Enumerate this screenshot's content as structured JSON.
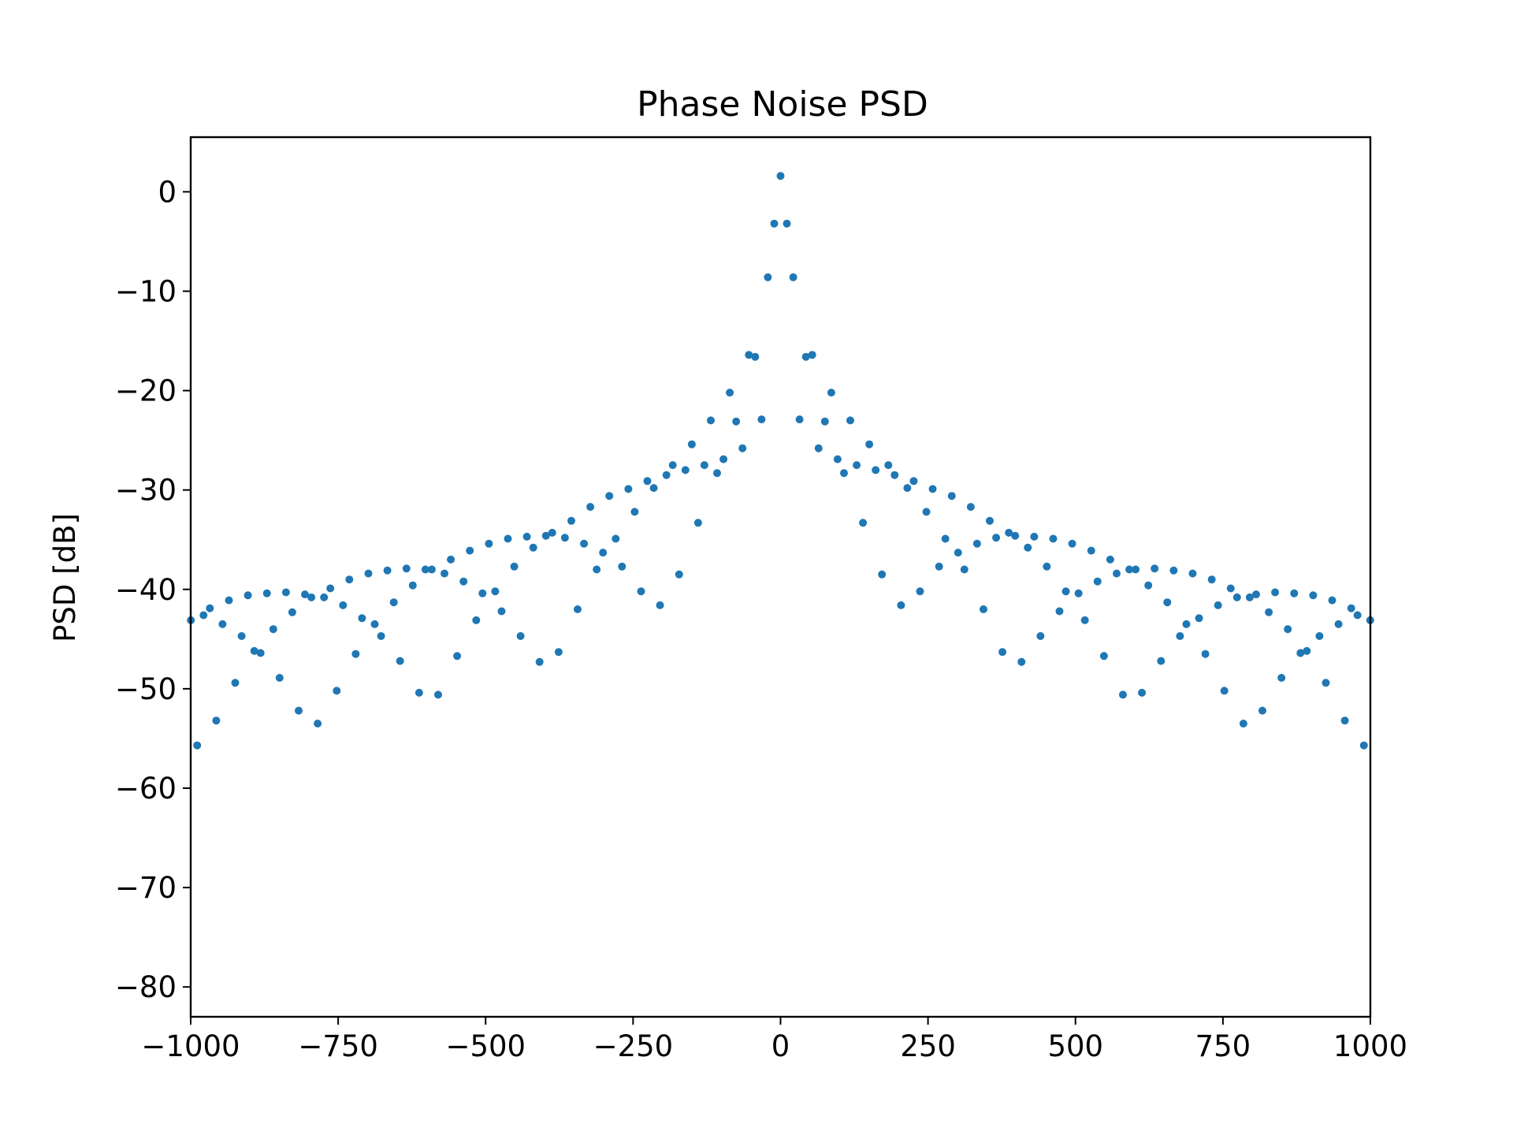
{
  "chart_data": {
    "type": "scatter",
    "title": "Phase Noise PSD",
    "xlabel": "",
    "ylabel": "PSD [dB]",
    "xlim": [
      -1000,
      1000
    ],
    "ylim": [
      -83,
      5.5
    ],
    "xticks": [
      -1000,
      -750,
      -500,
      -250,
      0,
      250,
      500,
      750,
      1000
    ],
    "yticks": [
      0,
      -10,
      -20,
      -30,
      -40,
      -50,
      -60,
      -70,
      -80
    ],
    "xtick_labels": [
      "−1000",
      "−750",
      "−500",
      "−250",
      "0",
      "250",
      "500",
      "750",
      "1000"
    ],
    "ytick_labels": [
      "0",
      "−10",
      "−20",
      "−30",
      "−40",
      "−50",
      "−60",
      "−70",
      "−80"
    ],
    "grid": false,
    "marker_color": "#1f77b4",
    "points_right": [
      [
        0,
        1.6
      ],
      [
        10.75,
        -3.2
      ],
      [
        21.5,
        -8.6
      ],
      [
        43,
        -16.6
      ],
      [
        53.75,
        -16.4
      ],
      [
        32.25,
        -22.9
      ],
      [
        64.5,
        -25.8
      ],
      [
        75.25,
        -23.1
      ],
      [
        86,
        -20.2
      ],
      [
        96.75,
        -26.9
      ],
      [
        107.5,
        -28.3
      ],
      [
        118.25,
        -23.0
      ],
      [
        129,
        -27.5
      ],
      [
        139.75,
        -33.3
      ],
      [
        150.5,
        -25.4
      ],
      [
        161.25,
        -28.0
      ],
      [
        172,
        -38.5
      ],
      [
        182.75,
        -27.5
      ],
      [
        193.5,
        -28.5
      ],
      [
        204.25,
        -41.6
      ],
      [
        215,
        -29.8
      ],
      [
        225.75,
        -29.1
      ],
      [
        236.5,
        -40.2
      ],
      [
        247.25,
        -32.2
      ],
      [
        258,
        -29.9
      ],
      [
        268.75,
        -37.7
      ],
      [
        279.5,
        -34.9
      ],
      [
        290.25,
        -30.6
      ],
      [
        301,
        -36.3
      ],
      [
        311.75,
        -38.0
      ],
      [
        322.5,
        -31.7
      ],
      [
        333.25,
        -35.4
      ],
      [
        344,
        -42.0
      ],
      [
        354.75,
        -33.1
      ],
      [
        365.5,
        -34.8
      ],
      [
        376.25,
        -46.3
      ],
      [
        387,
        -34.3
      ],
      [
        397.75,
        -34.6
      ],
      [
        408.5,
        -47.3
      ],
      [
        419.25,
        -35.8
      ],
      [
        430,
        -34.7
      ],
      [
        440.75,
        -44.7
      ],
      [
        451.5,
        -37.7
      ],
      [
        462.25,
        -34.9
      ],
      [
        473,
        -42.2
      ],
      [
        483.75,
        -40.2
      ],
      [
        494.5,
        -35.4
      ],
      [
        505.25,
        -40.4
      ],
      [
        516,
        -43.1
      ],
      [
        526.75,
        -36.1
      ],
      [
        537.5,
        -39.2
      ],
      [
        548.25,
        -46.7
      ],
      [
        559,
        -37.0
      ],
      [
        569.75,
        -38.4
      ],
      [
        580.5,
        -50.6
      ],
      [
        591.25,
        -38.0
      ],
      [
        602,
        -38.0
      ],
      [
        612.75,
        -50.4
      ],
      [
        623.5,
        -39.6
      ],
      [
        634.25,
        -37.9
      ],
      [
        645,
        -47.2
      ],
      [
        655.75,
        -41.3
      ],
      [
        666.5,
        -38.1
      ],
      [
        677.25,
        -44.7
      ],
      [
        688,
        -43.5
      ],
      [
        698.75,
        -38.4
      ],
      [
        709.5,
        -42.9
      ],
      [
        720.25,
        -46.5
      ],
      [
        731,
        -39.0
      ],
      [
        741.75,
        -41.6
      ],
      [
        752.5,
        -50.2
      ],
      [
        763.25,
        -39.9
      ],
      [
        774,
        -40.8
      ],
      [
        784.75,
        -53.5
      ],
      [
        795.5,
        -40.8
      ],
      [
        806.25,
        -40.5
      ],
      [
        817,
        -52.2
      ],
      [
        827.75,
        -42.3
      ],
      [
        838.5,
        -40.3
      ],
      [
        849.25,
        -48.9
      ],
      [
        860,
        -44.0
      ],
      [
        870.75,
        -40.4
      ],
      [
        881.5,
        -46.4
      ],
      [
        892.25,
        -46.2
      ],
      [
        903,
        -40.6
      ],
      [
        913.75,
        -44.7
      ],
      [
        924.5,
        -49.4
      ],
      [
        935.25,
        -41.1
      ],
      [
        946,
        -43.5
      ],
      [
        956.75,
        -53.2
      ],
      [
        967.5,
        -41.9
      ],
      [
        978.25,
        -42.6
      ],
      [
        989,
        -55.7
      ],
      [
        999.75,
        -43.1
      ]
    ]
  }
}
